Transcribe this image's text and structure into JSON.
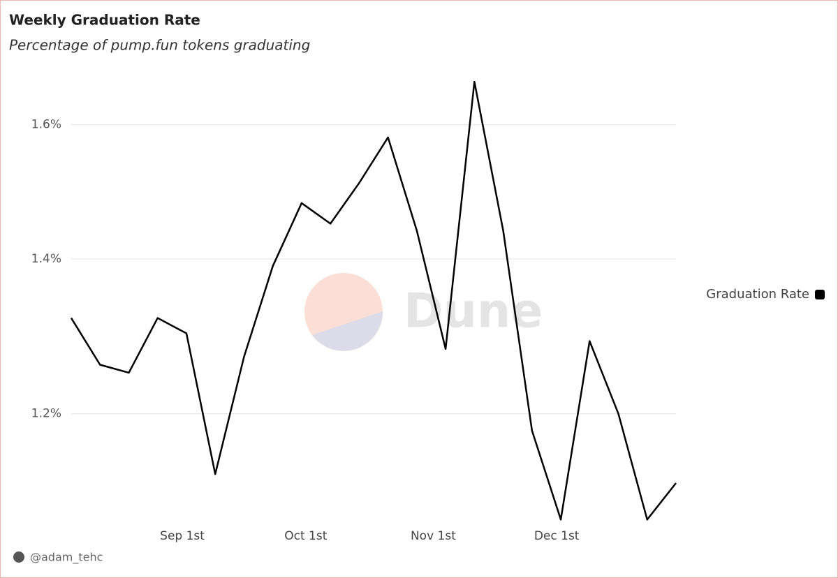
{
  "chart_data": {
    "type": "line",
    "title": "Weekly Graduation Rate",
    "subtitle": "Percentage of pump.fun tokens graduating",
    "x": [
      "Aug 5",
      "Aug 12",
      "Aug 19",
      "Aug 26",
      "Sep 2",
      "Sep 9",
      "Sep 16",
      "Sep 23",
      "Sep 30",
      "Oct 7",
      "Oct 14",
      "Oct 21",
      "Oct 28",
      "Nov 4",
      "Nov 11",
      "Nov 18",
      "Nov 25",
      "Dec 2",
      "Dec 9",
      "Dec 16",
      "Dec 23",
      "Dec 30"
    ],
    "series": [
      {
        "name": "Graduation Rate",
        "color": "#000000",
        "values": [
          1.32,
          1.26,
          1.25,
          1.32,
          1.3,
          1.13,
          1.27,
          1.39,
          1.48,
          1.45,
          1.51,
          1.58,
          1.44,
          1.28,
          1.67,
          1.44,
          1.18,
          1.08,
          1.29,
          1.2,
          1.08,
          1.12
        ]
      }
    ],
    "xlim": [
      "Aug 5",
      "Dec 30"
    ],
    "xticks": [
      {
        "value": "Sep 1",
        "label": "Sep 1st"
      },
      {
        "value": "Oct 1",
        "label": "Oct 1st"
      },
      {
        "value": "Nov 1",
        "label": "Nov 1st"
      },
      {
        "value": "Dec 1",
        "label": "Dec 1st"
      }
    ],
    "ylim": [
      1.072,
      1.69
    ],
    "yscale": "log",
    "yticks": [
      {
        "value": 1.2,
        "label": "1.2%"
      },
      {
        "value": 1.4,
        "label": "1.4%"
      },
      {
        "value": 1.6,
        "label": "1.6%"
      }
    ],
    "grid": true,
    "legend": "right",
    "watermark": "Dune",
    "author": "@adam_tehc"
  }
}
